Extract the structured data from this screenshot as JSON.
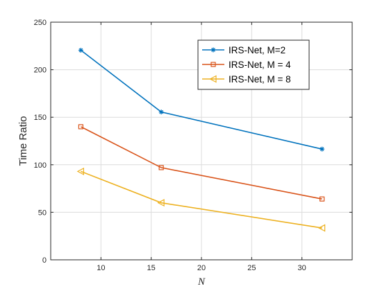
{
  "chart_data": {
    "type": "line",
    "xlabel": "N",
    "ylabel": "Time Ratio",
    "xlim": [
      5,
      35
    ],
    "ylim": [
      0,
      250
    ],
    "xticks": [
      10,
      15,
      20,
      25,
      30
    ],
    "yticks": [
      0,
      50,
      100,
      150,
      200,
      250
    ],
    "grid": true,
    "legend_position": "top-right",
    "x": [
      8,
      16,
      32
    ],
    "series": [
      {
        "name": "IRS-Net, M=2",
        "values": [
          220.5,
          155.5,
          116.5
        ],
        "color": "#0072BD",
        "marker": "asterisk"
      },
      {
        "name": "IRS-Net, M = 4",
        "values": [
          140,
          97,
          64
        ],
        "color": "#D95319",
        "marker": "square"
      },
      {
        "name": "IRS-Net, M = 8",
        "values": [
          93,
          60,
          33.5
        ],
        "color": "#EDB120",
        "marker": "triangle-left"
      }
    ]
  }
}
